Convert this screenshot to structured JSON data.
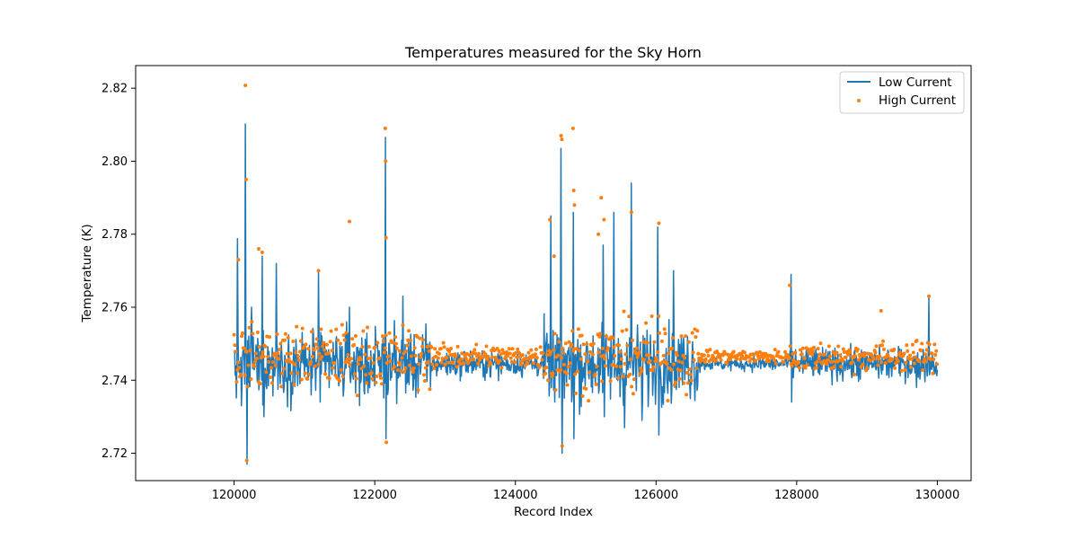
{
  "chart_data": {
    "type": "line",
    "title": "Temperatures measured for the Sky Horn",
    "xlabel": "Record Index",
    "ylabel": "Temperature (K)",
    "xlim": [
      118600,
      130480
    ],
    "ylim": [
      2.7125,
      2.8262
    ],
    "x_ticks": [
      120000,
      122000,
      124000,
      126000,
      128000,
      130000
    ],
    "y_ticks": [
      2.72,
      2.74,
      2.76,
      2.78,
      2.8,
      2.82
    ],
    "grid": false,
    "legend_position": "top-right",
    "colors": {
      "low_current": "#1f77b4",
      "high_current": "#ff7f0e"
    },
    "series": [
      {
        "name": "Low Current",
        "style": "line",
        "baseline": 2.7445,
        "x_range": [
          120000,
          130000
        ],
        "spikes": [
          {
            "x": 120050,
            "y": 2.7788
          },
          {
            "x": 120100,
            "y": 2.733
          },
          {
            "x": 120160,
            "y": 2.8102
          },
          {
            "x": 120180,
            "y": 2.717
          },
          {
            "x": 120250,
            "y": 2.76
          },
          {
            "x": 120400,
            "y": 2.774
          },
          {
            "x": 120420,
            "y": 2.73
          },
          {
            "x": 120600,
            "y": 2.772
          },
          {
            "x": 121200,
            "y": 2.77
          },
          {
            "x": 121220,
            "y": 2.734
          },
          {
            "x": 121640,
            "y": 2.76
          },
          {
            "x": 121850,
            "y": 2.737
          },
          {
            "x": 122150,
            "y": 2.8065
          },
          {
            "x": 122160,
            "y": 2.724
          },
          {
            "x": 122400,
            "y": 2.763
          },
          {
            "x": 124500,
            "y": 2.785
          },
          {
            "x": 124560,
            "y": 2.734
          },
          {
            "x": 124650,
            "y": 2.8035
          },
          {
            "x": 124660,
            "y": 2.72
          },
          {
            "x": 124820,
            "y": 2.786
          },
          {
            "x": 124830,
            "y": 2.724
          },
          {
            "x": 125250,
            "y": 2.777
          },
          {
            "x": 125260,
            "y": 2.73
          },
          {
            "x": 125400,
            "y": 2.786
          },
          {
            "x": 125550,
            "y": 2.727
          },
          {
            "x": 125650,
            "y": 2.794
          },
          {
            "x": 125800,
            "y": 2.729
          },
          {
            "x": 126020,
            "y": 2.782
          },
          {
            "x": 126040,
            "y": 2.725
          },
          {
            "x": 126250,
            "y": 2.77
          },
          {
            "x": 127920,
            "y": 2.769
          },
          {
            "x": 127930,
            "y": 2.734
          },
          {
            "x": 129700,
            "y": 2.738
          },
          {
            "x": 129880,
            "y": 2.763
          }
        ]
      },
      {
        "name": "High Current",
        "style": "scatter",
        "baseline": 2.7465,
        "x_range": [
          120000,
          130000
        ],
        "outliers": [
          {
            "x": 120160,
            "y": 2.8208
          },
          {
            "x": 120170,
            "y": 2.795
          },
          {
            "x": 120180,
            "y": 2.718
          },
          {
            "x": 120060,
            "y": 2.773
          },
          {
            "x": 120350,
            "y": 2.776
          },
          {
            "x": 120400,
            "y": 2.775
          },
          {
            "x": 121200,
            "y": 2.77
          },
          {
            "x": 121640,
            "y": 2.7835
          },
          {
            "x": 122150,
            "y": 2.809
          },
          {
            "x": 122155,
            "y": 2.8
          },
          {
            "x": 122160,
            "y": 2.779
          },
          {
            "x": 122165,
            "y": 2.723
          },
          {
            "x": 124490,
            "y": 2.784
          },
          {
            "x": 124550,
            "y": 2.774
          },
          {
            "x": 124650,
            "y": 2.807
          },
          {
            "x": 124660,
            "y": 2.806
          },
          {
            "x": 124665,
            "y": 2.722
          },
          {
            "x": 124820,
            "y": 2.809
          },
          {
            "x": 124830,
            "y": 2.792
          },
          {
            "x": 124840,
            "y": 2.788
          },
          {
            "x": 125180,
            "y": 2.78
          },
          {
            "x": 125220,
            "y": 2.79
          },
          {
            "x": 125260,
            "y": 2.784
          },
          {
            "x": 125650,
            "y": 2.786
          },
          {
            "x": 126040,
            "y": 2.783
          },
          {
            "x": 127900,
            "y": 2.766
          },
          {
            "x": 129200,
            "y": 2.759
          },
          {
            "x": 129880,
            "y": 2.763
          }
        ]
      }
    ]
  }
}
